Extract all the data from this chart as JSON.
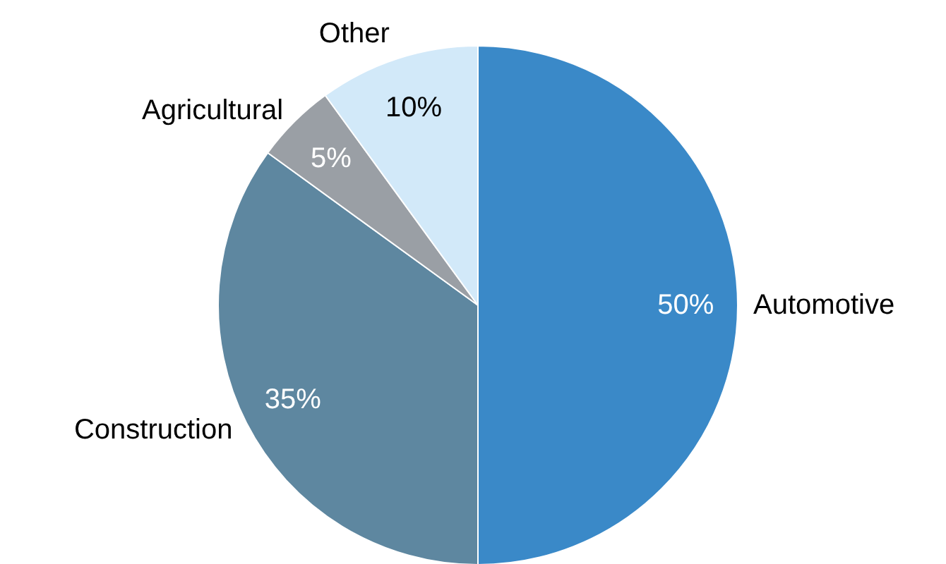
{
  "chart_data": {
    "type": "pie",
    "categories": [
      "Automotive",
      "Construction",
      "Agricultural",
      "Other"
    ],
    "values": [
      50,
      35,
      5,
      10
    ],
    "value_labels": [
      "50%",
      "35%",
      "5%",
      "10%"
    ],
    "colors": [
      "#3a89c8",
      "#5e87a0",
      "#9a9fa5",
      "#d2e9f9"
    ]
  }
}
